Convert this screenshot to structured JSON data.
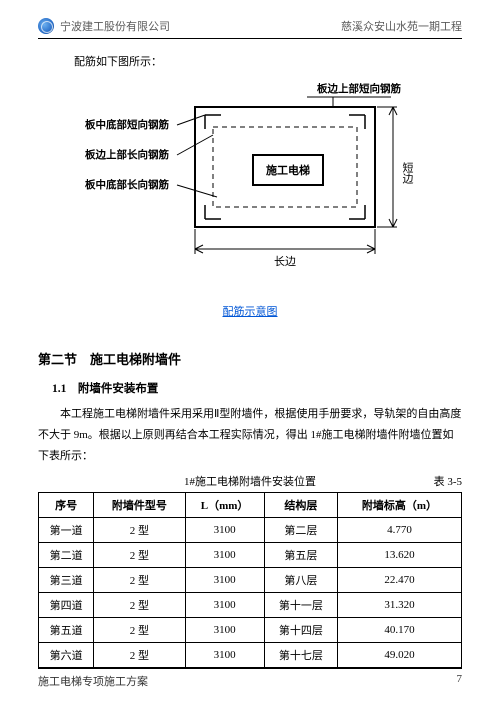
{
  "header": {
    "company": "宁波建工股份有限公司",
    "project": "慈溪众安山水苑一期工程"
  },
  "intro": "配筋如下图所示：",
  "diagram": {
    "callouts": {
      "top_right": "板边上部短向钢筋",
      "left1": "板中底部短向钢筋",
      "left2": "板边上部长向钢筋",
      "left3": "板中底部长向钢筋"
    },
    "center_box": "施工电梯",
    "h_label": "长边",
    "v_label": "短边",
    "stroke": "#000000",
    "guide": "#000000"
  },
  "caption": "配筋示意图",
  "section": "第二节　施工电梯附墙件",
  "sub": "1.1　附墙件安装布置",
  "paragraph": "本工程施工电梯附墙件采用采用Ⅱ型附墙件，根据使用手册要求，导轨架的自由高度不大于 9m。根据以上原则再结合本工程实际情况，得出 1#施工电梯附墙件附墙位置如下表所示：",
  "table": {
    "title": "1#施工电梯附墙件安装位置",
    "ref": "表 3-5",
    "columns": [
      "序号",
      "附墙件型号",
      "L（mm）",
      "结构层",
      "附墙标高（m）"
    ],
    "rows": [
      [
        "第一道",
        "2 型",
        "3100",
        "第二层",
        "4.770"
      ],
      [
        "第二道",
        "2 型",
        "3100",
        "第五层",
        "13.620"
      ],
      [
        "第三道",
        "2 型",
        "3100",
        "第八层",
        "22.470"
      ],
      [
        "第四道",
        "2 型",
        "3100",
        "第十一层",
        "31.320"
      ],
      [
        "第五道",
        "2 型",
        "3100",
        "第十四层",
        "40.170"
      ],
      [
        "第六道",
        "2 型",
        "3100",
        "第十七层",
        "49.020"
      ]
    ]
  },
  "footer": {
    "doc": "施工电梯专项施工方案",
    "page": "7"
  }
}
